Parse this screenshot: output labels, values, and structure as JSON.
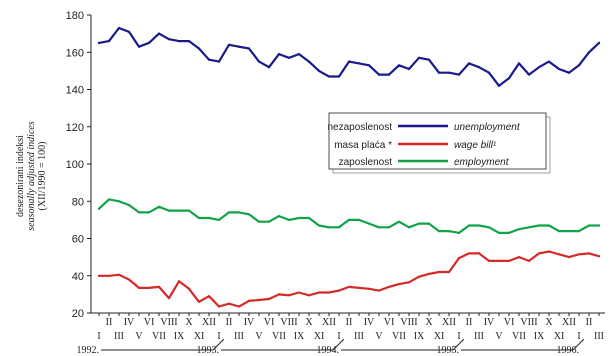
{
  "chart_data": {
    "type": "line",
    "ylim": [
      20,
      180
    ],
    "yticks": [
      20,
      40,
      60,
      80,
      100,
      120,
      140,
      160,
      180
    ],
    "ylabel": {
      "line1": "desezonirani indeksi",
      "line2": "seasonally adjusted indices",
      "line3": "(XII/1990 = 100)"
    },
    "month_labels": [
      "I",
      "II",
      "III",
      "IV",
      "V",
      "VI",
      "VII",
      "VIII",
      "IX",
      "X",
      "XI",
      "XII",
      "I",
      "II",
      "III",
      "IV",
      "V",
      "VI",
      "VII",
      "VIII",
      "IX",
      "X",
      "XI",
      "XII",
      "I",
      "II",
      "III",
      "IV",
      "V",
      "VI",
      "VII",
      "VIII",
      "IX",
      "X",
      "XI",
      "XII",
      "I",
      "II",
      "III",
      "IV",
      "V",
      "VI",
      "VII",
      "VIII",
      "IX",
      "X",
      "XI",
      "XII",
      "I",
      "II",
      "III",
      "IV",
      "V",
      "VI",
      "VII",
      "VIII",
      "IX",
      "X",
      "XI",
      "XII",
      "I",
      "II"
    ],
    "year_labels": [
      {
        "label": "1992.",
        "start": 1
      },
      {
        "label": "1993.",
        "start": 13
      },
      {
        "label": "1994.",
        "start": 25
      },
      {
        "label": "1995.",
        "start": 37
      },
      {
        "label": "1996.",
        "start": 49
      }
    ],
    "legend": {
      "box": "on",
      "entries": [
        {
          "label_hr": "nezaposlenost",
          "label_en": "unemployment"
        },
        {
          "label_hr": "masa plaća *",
          "label_en": "wage bill¹"
        },
        {
          "label_hr": "zaposlenost",
          "label_en": "employment"
        }
      ]
    },
    "series": [
      {
        "name": "nezaposlenost / unemployment",
        "color": "#1a1a8c",
        "values": [
          165,
          166,
          173,
          171,
          163,
          165,
          170,
          167,
          166,
          166,
          162,
          156,
          155,
          164,
          163,
          162,
          155,
          152,
          159,
          157,
          159,
          155,
          150,
          147,
          147,
          155,
          154,
          153,
          148,
          148,
          153,
          151,
          157,
          156,
          149,
          149,
          148,
          154,
          152,
          149,
          142,
          146,
          154,
          148,
          152,
          155,
          151,
          149,
          153,
          160,
          165
        ]
      },
      {
        "name": "masa plaća * / wage bill¹",
        "color": "#d42a2a",
        "values": [
          40,
          40,
          40.5,
          38,
          33.5,
          33.5,
          34,
          28,
          37,
          33,
          26,
          29,
          23.5,
          25,
          23.5,
          26.5,
          27,
          27.5,
          30,
          29.5,
          31,
          29.5,
          31,
          31,
          32,
          34,
          33.5,
          33,
          32,
          34,
          35.5,
          36.5,
          39.5,
          41,
          42,
          42,
          49.5,
          52,
          52,
          48,
          48,
          48,
          50,
          48,
          52,
          53,
          51.5,
          50,
          51.5,
          52,
          50.5
        ]
      },
      {
        "name": "zaposlenost / employment",
        "color": "#12a24a",
        "values": [
          76,
          81,
          80,
          78,
          74,
          74,
          77,
          75,
          75,
          75,
          71,
          71,
          70,
          74,
          74,
          73,
          69,
          69,
          72,
          70,
          71,
          71,
          67,
          66,
          66,
          70,
          70,
          68,
          66,
          66,
          69,
          66,
          68,
          68,
          64,
          64,
          63,
          67,
          67,
          66,
          63,
          63,
          65,
          66,
          67,
          67,
          64,
          64,
          64,
          67,
          67
        ]
      }
    ]
  }
}
